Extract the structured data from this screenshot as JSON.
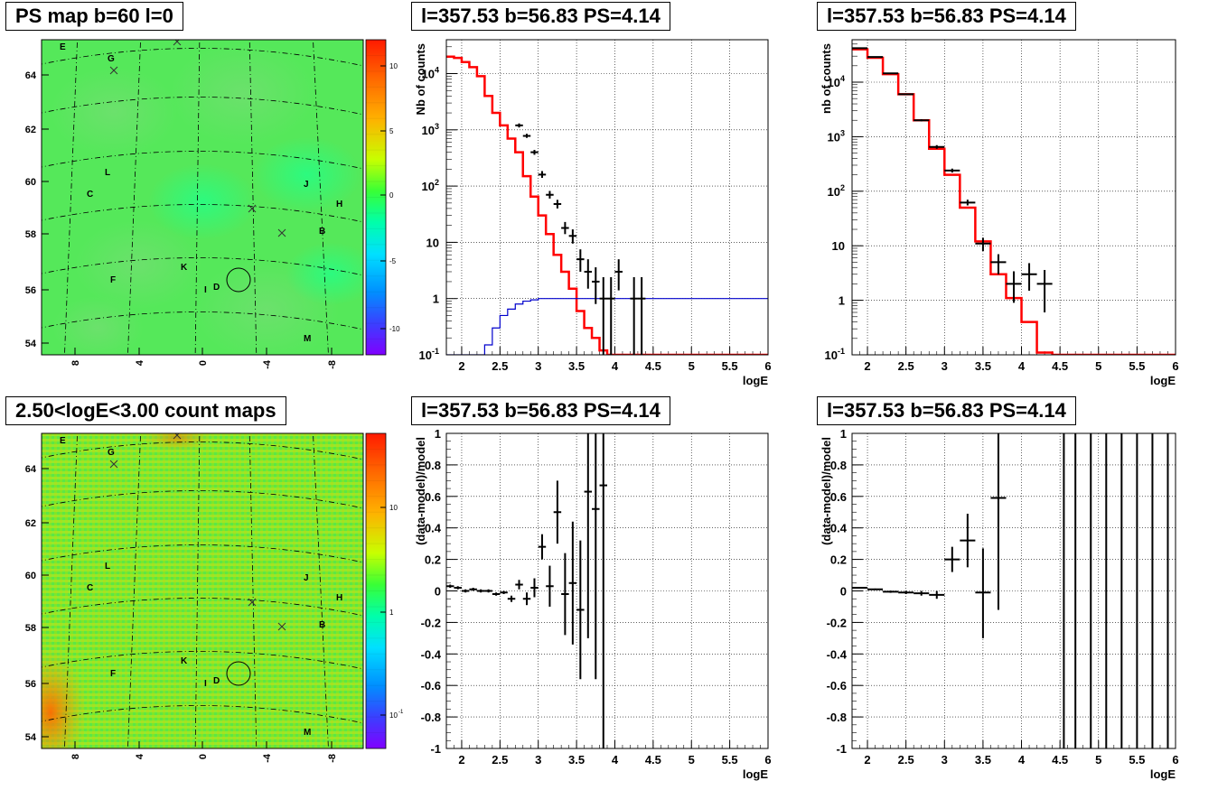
{
  "titles": {
    "map_top": "PS map b=60 l=0",
    "map_bottom": "2.50<logE<3.00 count maps",
    "spec_left": "l=357.53 b=56.83 PS=4.14",
    "spec_right": "l=357.53 b=56.83 PS=4.14",
    "resid_left": "l=357.53 b=56.83 PS=4.14",
    "resid_right": "l=357.53 b=56.83 PS=4.14"
  },
  "map": {
    "y_ticks": [
      "64",
      "62",
      "60",
      "58",
      "56",
      "54"
    ],
    "x_ticks": [
      "8",
      "4",
      "0",
      "-4",
      "-8"
    ],
    "source_labels": [
      "E",
      "G",
      "L",
      "C",
      "J",
      "H",
      "B",
      "K",
      "D",
      "I",
      "F",
      "M"
    ],
    "colorbar_top_ticks": [
      "10",
      "5",
      "0",
      "-5",
      "-10"
    ],
    "colorbar_bottom_ticks": [
      "10",
      "1",
      "10"
    ],
    "colorbar_bottom_exp": "-1"
  },
  "colors": {
    "model": "#ff0000",
    "background": "#0000cc",
    "data": "#000000"
  },
  "chart_data": [
    {
      "type": "line",
      "title": "l=357.53 b=56.83 PS=4.14",
      "xlabel": "logE",
      "ylabel": "Nb of counts",
      "log_y": true,
      "xlim": [
        1.8,
        6
      ],
      "ylim": [
        0.1,
        40000
      ],
      "x_ticks": [
        "2",
        "2.5",
        "3",
        "3.5",
        "4",
        "4.5",
        "5",
        "5.5",
        "6"
      ],
      "y_ticks": [
        {
          "base": "10",
          "exp": "4"
        },
        {
          "base": "10",
          "exp": "3"
        },
        {
          "base": "10",
          "exp": "2"
        },
        {
          "base": "10",
          "exp": ""
        },
        {
          "base": "1",
          "exp": ""
        },
        {
          "base": "10",
          "exp": "-1"
        }
      ],
      "grid": true,
      "series": [
        {
          "role": "model",
          "bin_width": 0.1,
          "x_start": 1.8,
          "values": [
            20000,
            19000,
            16000,
            13000,
            9000,
            4000,
            2000,
            1200,
            700,
            400,
            150,
            65,
            30,
            14,
            6,
            3,
            1.5,
            0.6,
            0.3,
            0.2,
            0.12,
            0.1,
            0.1,
            0.1,
            0.1,
            0.1,
            0.1,
            0.1,
            0.1,
            0.1,
            0.1,
            0.1,
            0.1,
            0.1,
            0.1,
            0.1,
            0.1,
            0.1,
            0.1,
            0.1,
            0.1,
            0.1
          ]
        },
        {
          "role": "background",
          "bin_width": 0.1,
          "x_start": 1.8,
          "values": [
            0.1,
            0.1,
            0.1,
            0.1,
            0.1,
            0.15,
            0.3,
            0.5,
            0.65,
            0.8,
            0.9,
            0.95,
            1,
            1,
            1,
            1,
            1,
            1,
            1,
            1,
            1,
            1,
            1,
            1,
            1,
            1,
            1,
            1,
            1,
            1,
            1,
            1,
            1,
            1,
            1,
            1,
            1,
            1,
            1,
            1,
            1,
            1
          ]
        },
        {
          "role": "data",
          "points": [
            {
              "x": 2.75,
              "y": 1200,
              "lo": 1100,
              "hi": 1300,
              "xerr": 0.05
            },
            {
              "x": 2.85,
              "y": 780,
              "lo": 720,
              "hi": 850,
              "xerr": 0.05
            },
            {
              "x": 2.95,
              "y": 400,
              "lo": 360,
              "hi": 440,
              "xerr": 0.05
            },
            {
              "x": 3.05,
              "y": 160,
              "lo": 140,
              "hi": 185,
              "xerr": 0.05
            },
            {
              "x": 3.15,
              "y": 70,
              "lo": 60,
              "hi": 82,
              "xerr": 0.05
            },
            {
              "x": 3.25,
              "y": 48,
              "lo": 40,
              "hi": 57,
              "xerr": 0.05
            },
            {
              "x": 3.35,
              "y": 18,
              "lo": 14,
              "hi": 23,
              "xerr": 0.05
            },
            {
              "x": 3.45,
              "y": 13,
              "lo": 9.5,
              "hi": 17,
              "xerr": 0.05
            },
            {
              "x": 3.55,
              "y": 5,
              "lo": 3,
              "hi": 7.5,
              "xerr": 0.05
            },
            {
              "x": 3.65,
              "y": 3,
              "lo": 1.5,
              "hi": 5,
              "xerr": 0.05
            },
            {
              "x": 3.75,
              "y": 2,
              "lo": 0.8,
              "hi": 3.6,
              "xerr": 0.05
            },
            {
              "x": 3.85,
              "y": 1,
              "lo": 0.1,
              "hi": 2.4,
              "xerr": 0.05
            },
            {
              "x": 3.95,
              "y": 1,
              "lo": 0.1,
              "hi": 2.4,
              "xerr": 0.05
            },
            {
              "x": 4.05,
              "y": 3,
              "lo": 1.4,
              "hi": 5,
              "xerr": 0.05
            },
            {
              "x": 4.25,
              "y": 1,
              "lo": 0.1,
              "hi": 2.4,
              "xerr": 0.05
            },
            {
              "x": 4.35,
              "y": 1,
              "lo": 0.1,
              "hi": 2.4,
              "xerr": 0.05
            }
          ]
        }
      ]
    },
    {
      "type": "line",
      "title": "l=357.53 b=56.83 PS=4.14",
      "xlabel": "logE",
      "ylabel": "nb of counts",
      "log_y": true,
      "xlim": [
        1.8,
        6
      ],
      "ylim": [
        0.1,
        60000
      ],
      "x_ticks": [
        "2",
        "2.5",
        "3",
        "3.5",
        "4",
        "4.5",
        "5",
        "5.5",
        "6"
      ],
      "y_ticks": [
        {
          "base": "10",
          "exp": "4"
        },
        {
          "base": "10",
          "exp": "3"
        },
        {
          "base": "10",
          "exp": "2"
        },
        {
          "base": "10",
          "exp": ""
        },
        {
          "base": "1",
          "exp": ""
        },
        {
          "base": "10",
          "exp": "-1"
        }
      ],
      "grid": true,
      "series": [
        {
          "role": "model",
          "edges": [
            1.8,
            2.0,
            2.2,
            2.4,
            2.6,
            2.8,
            3.0,
            3.2,
            3.4,
            3.6,
            3.8,
            4.0,
            4.2,
            4.4,
            4.6,
            4.8,
            5.0,
            5.2,
            5.4,
            5.6,
            5.8,
            6.0
          ],
          "values": [
            40000,
            28000,
            14000,
            6000,
            2000,
            600,
            200,
            50,
            12,
            3,
            1.1,
            0.4,
            0.11,
            0.1,
            0.1,
            0.1,
            0.1,
            0.1,
            0.1,
            0.1,
            0.1
          ]
        },
        {
          "role": "data",
          "points": [
            {
              "x": 1.9,
              "y": 42000,
              "lo": 41500,
              "hi": 42500,
              "xerr": 0.1
            },
            {
              "x": 2.1,
              "y": 29000,
              "lo": 28600,
              "hi": 29400,
              "xerr": 0.1
            },
            {
              "x": 2.3,
              "y": 14500,
              "lo": 14200,
              "hi": 14800,
              "xerr": 0.1
            },
            {
              "x": 2.5,
              "y": 6000,
              "lo": 5850,
              "hi": 6150,
              "xerr": 0.1
            },
            {
              "x": 2.7,
              "y": 2000,
              "lo": 1910,
              "hi": 2090,
              "xerr": 0.1
            },
            {
              "x": 2.9,
              "y": 650,
              "lo": 600,
              "hi": 700,
              "xerr": 0.1
            },
            {
              "x": 3.1,
              "y": 240,
              "lo": 220,
              "hi": 260,
              "xerr": 0.1
            },
            {
              "x": 3.3,
              "y": 62,
              "lo": 55,
              "hi": 70,
              "xerr": 0.1
            },
            {
              "x": 3.5,
              "y": 11,
              "lo": 8,
              "hi": 14,
              "xerr": 0.1
            },
            {
              "x": 3.7,
              "y": 5,
              "lo": 3,
              "hi": 7,
              "xerr": 0.1
            },
            {
              "x": 3.9,
              "y": 2,
              "lo": 0.9,
              "hi": 3.4,
              "xerr": 0.1
            },
            {
              "x": 4.1,
              "y": 3,
              "lo": 1.5,
              "hi": 4.8,
              "xerr": 0.1
            },
            {
              "x": 4.3,
              "y": 2,
              "lo": 0.6,
              "hi": 3.6,
              "xerr": 0.1
            }
          ]
        }
      ]
    },
    {
      "type": "scatter",
      "title": "l=357.53 b=56.83 PS=4.14",
      "xlabel": "logE",
      "ylabel": "(data-model)/model",
      "xlim": [
        1.8,
        6
      ],
      "ylim": [
        -1,
        1
      ],
      "x_ticks": [
        "2",
        "2.5",
        "3",
        "3.5",
        "4",
        "4.5",
        "5",
        "5.5",
        "6"
      ],
      "y_ticks": [
        "1",
        "0.8",
        "0.6",
        "0.4",
        "0.2",
        "0",
        "-0.2",
        "-0.4",
        "-0.6",
        "-0.8",
        "-1"
      ],
      "grid": true,
      "series": [
        {
          "role": "data",
          "points": [
            {
              "x": 1.85,
              "y": 0.03,
              "lo": 0.02,
              "hi": 0.04,
              "xerr": 0.05
            },
            {
              "x": 1.95,
              "y": 0.02,
              "lo": 0.01,
              "hi": 0.03,
              "xerr": 0.05
            },
            {
              "x": 2.05,
              "y": 0.0,
              "lo": -0.01,
              "hi": 0.01,
              "xerr": 0.05
            },
            {
              "x": 2.15,
              "y": 0.01,
              "lo": 0.0,
              "hi": 0.02,
              "xerr": 0.05
            },
            {
              "x": 2.25,
              "y": 0.0,
              "lo": -0.01,
              "hi": 0.01,
              "xerr": 0.05
            },
            {
              "x": 2.35,
              "y": 0.0,
              "lo": -0.01,
              "hi": 0.01,
              "xerr": 0.05
            },
            {
              "x": 2.45,
              "y": -0.02,
              "lo": -0.03,
              "hi": -0.01,
              "xerr": 0.05
            },
            {
              "x": 2.55,
              "y": -0.01,
              "lo": -0.02,
              "hi": 0.0,
              "xerr": 0.05
            },
            {
              "x": 2.65,
              "y": -0.05,
              "lo": -0.07,
              "hi": -0.03,
              "xerr": 0.05
            },
            {
              "x": 2.75,
              "y": 0.04,
              "lo": 0.01,
              "hi": 0.07,
              "xerr": 0.05
            },
            {
              "x": 2.85,
              "y": -0.05,
              "lo": -0.09,
              "hi": -0.01,
              "xerr": 0.05
            },
            {
              "x": 2.95,
              "y": 0.02,
              "lo": -0.04,
              "hi": 0.08,
              "xerr": 0.05
            },
            {
              "x": 3.05,
              "y": 0.28,
              "lo": 0.2,
              "hi": 0.36,
              "xerr": 0.05
            },
            {
              "x": 3.15,
              "y": 0.03,
              "lo": -0.1,
              "hi": 0.16,
              "xerr": 0.05
            },
            {
              "x": 3.25,
              "y": 0.5,
              "lo": 0.3,
              "hi": 0.7,
              "xerr": 0.05
            },
            {
              "x": 3.35,
              "y": -0.02,
              "lo": -0.28,
              "hi": 0.24,
              "xerr": 0.05
            },
            {
              "x": 3.45,
              "y": 0.05,
              "lo": -0.34,
              "hi": 0.44,
              "xerr": 0.05
            },
            {
              "x": 3.55,
              "y": -0.12,
              "lo": -0.56,
              "hi": 0.32,
              "xerr": 0.05
            },
            {
              "x": 3.65,
              "y": 0.63,
              "lo": -0.3,
              "hi": 1.0,
              "xerr": 0.05
            },
            {
              "x": 3.75,
              "y": 0.52,
              "lo": -0.56,
              "hi": 1.0,
              "xerr": 0.05
            },
            {
              "x": 3.85,
              "y": 0.67,
              "lo": -1.0,
              "hi": 1.0,
              "xerr": 0.05
            }
          ]
        }
      ]
    },
    {
      "type": "scatter",
      "title": "l=357.53 b=56.83 PS=4.14",
      "xlabel": "logE",
      "ylabel": "(data-model)/model",
      "xlim": [
        1.8,
        6
      ],
      "ylim": [
        -1,
        1
      ],
      "x_ticks": [
        "2",
        "2.5",
        "3",
        "3.5",
        "4",
        "4.5",
        "5",
        "5.5",
        "6"
      ],
      "y_ticks": [
        "1",
        "0.8",
        "0.6",
        "0.4",
        "0.2",
        "0",
        "-0.2",
        "-0.4",
        "-0.6",
        "-0.8",
        "-1"
      ],
      "grid": true,
      "series": [
        {
          "role": "data",
          "points": [
            {
              "x": 1.9,
              "y": 0.02,
              "lo": 0.015,
              "hi": 0.025,
              "xerr": 0.1
            },
            {
              "x": 2.1,
              "y": 0.01,
              "lo": 0.005,
              "hi": 0.015,
              "xerr": 0.1
            },
            {
              "x": 2.3,
              "y": -0.005,
              "lo": -0.012,
              "hi": 0.002,
              "xerr": 0.1
            },
            {
              "x": 2.5,
              "y": -0.01,
              "lo": -0.02,
              "hi": 0.0,
              "xerr": 0.1
            },
            {
              "x": 2.7,
              "y": -0.015,
              "lo": -0.03,
              "hi": 0.0,
              "xerr": 0.1
            },
            {
              "x": 2.9,
              "y": -0.025,
              "lo": -0.05,
              "hi": 0.0,
              "xerr": 0.1
            },
            {
              "x": 3.1,
              "y": 0.2,
              "lo": 0.12,
              "hi": 0.28,
              "xerr": 0.1
            },
            {
              "x": 3.3,
              "y": 0.32,
              "lo": 0.15,
              "hi": 0.49,
              "xerr": 0.1
            },
            {
              "x": 3.5,
              "y": -0.01,
              "lo": -0.3,
              "hi": 0.27,
              "xerr": 0.1
            },
            {
              "x": 3.7,
              "y": 0.59,
              "lo": -0.12,
              "hi": 1.0,
              "xerr": 0.1
            },
            {
              "x": 4.55,
              "y": 1.0,
              "lo": -1.0,
              "hi": 1.0,
              "xerr": 0
            },
            {
              "x": 4.7,
              "y": 1.0,
              "lo": -1.0,
              "hi": 1.0,
              "xerr": 0
            },
            {
              "x": 4.9,
              "y": 1.0,
              "lo": -1.0,
              "hi": 1.0,
              "xerr": 0
            },
            {
              "x": 5.1,
              "y": 1.0,
              "lo": -1.0,
              "hi": 1.0,
              "xerr": 0
            },
            {
              "x": 5.3,
              "y": 1.0,
              "lo": -1.0,
              "hi": 1.0,
              "xerr": 0
            },
            {
              "x": 5.5,
              "y": 1.0,
              "lo": -1.0,
              "hi": 1.0,
              "xerr": 0
            },
            {
              "x": 5.7,
              "y": 1.0,
              "lo": -1.0,
              "hi": 1.0,
              "xerr": 0
            },
            {
              "x": 5.9,
              "y": 1.0,
              "lo": -1.0,
              "hi": 1.0,
              "xerr": 0
            }
          ]
        }
      ]
    }
  ]
}
